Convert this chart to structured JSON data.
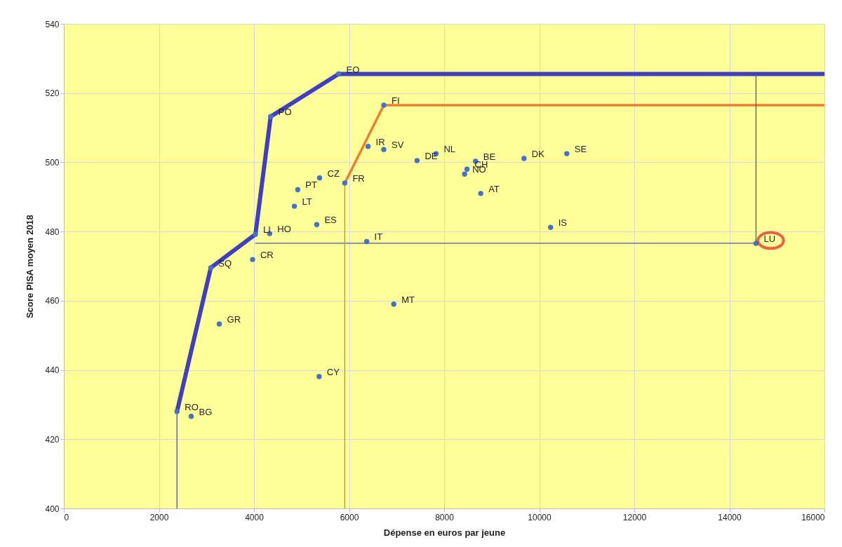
{
  "chart_data": {
    "type": "scatter",
    "xlabel": "Dépense en euros par jeune",
    "ylabel": "Score PISA moyen 2018",
    "xlim": [
      0,
      16000
    ],
    "ylim": [
      400,
      540
    ],
    "xticks": [
      0,
      2000,
      4000,
      6000,
      8000,
      10000,
      12000,
      14000,
      16000
    ],
    "yticks": [
      400,
      420,
      440,
      460,
      480,
      500,
      520,
      540
    ],
    "grid": true,
    "series": [
      {
        "type": "line",
        "color": "#3f3fbf",
        "x": [
          2380,
          3090,
          4030,
          4350,
          5780,
          16000
        ],
        "values": [
          428,
          469.5,
          479.2,
          513.2,
          525.5,
          525.5
        ]
      },
      {
        "type": "line",
        "color": "#ed7d31",
        "x": [
          5910,
          6730,
          16000
        ],
        "values": [
          494,
          516.5,
          516.5
        ]
      },
      {
        "type": "line",
        "color": "#4a5a9e",
        "x": [
          2380,
          2380
        ],
        "values": [
          428,
          400
        ]
      },
      {
        "type": "line",
        "color": "#4a5a9e",
        "x": [
          4030,
          14560,
          14560
        ],
        "values": [
          476.6,
          476.6,
          525.5
        ]
      },
      {
        "type": "line",
        "color": "#c98a3c",
        "x": [
          5910,
          5910
        ],
        "values": [
          494,
          400
        ]
      },
      {
        "color": "#4472c4",
        "x": [
          2380,
          2680,
          3270,
          3090,
          3970,
          4030,
          4330,
          4350,
          5780,
          6730,
          6400,
          6730,
          7430,
          7830,
          5380,
          5910,
          4920,
          4850,
          5320,
          6370,
          8660,
          8480,
          8430,
          8770,
          9680,
          10580,
          10240,
          6940,
          5370,
          14560
        ],
        "values": [
          428,
          426.6,
          453.3,
          469.5,
          471.9,
          479.2,
          479.4,
          513.2,
          525.5,
          516.5,
          504.6,
          503.7,
          500.5,
          502.5,
          495.5,
          494,
          492.1,
          487.3,
          482,
          477.1,
          500.3,
          498,
          496.6,
          491,
          501.1,
          502.5,
          481.2,
          459,
          438.1,
          476.6
        ]
      }
    ],
    "annotations": [
      {
        "text": "RO",
        "x": 2380,
        "y": 428
      },
      {
        "text": "BG",
        "x": 2680,
        "y": 426.6
      },
      {
        "text": "GR",
        "x": 3270,
        "y": 453.3
      },
      {
        "text": "SQ",
        "x": 3090,
        "y": 469.5
      },
      {
        "text": "CR",
        "x": 3970,
        "y": 471.9
      },
      {
        "text": "LI",
        "x": 4030,
        "y": 479.2
      },
      {
        "text": "HO",
        "x": 4330,
        "y": 479.4
      },
      {
        "text": "PO",
        "x": 4350,
        "y": 513.2
      },
      {
        "text": "EO",
        "x": 5780,
        "y": 525.5
      },
      {
        "text": "FI",
        "x": 6730,
        "y": 516.5
      },
      {
        "text": "IR",
        "x": 6400,
        "y": 504.6
      },
      {
        "text": "SV",
        "x": 6730,
        "y": 503.7
      },
      {
        "text": "DE",
        "x": 7430,
        "y": 500.5
      },
      {
        "text": "NL",
        "x": 7830,
        "y": 502.5
      },
      {
        "text": "CZ",
        "x": 5380,
        "y": 495.5
      },
      {
        "text": "FR",
        "x": 5910,
        "y": 494
      },
      {
        "text": "PT",
        "x": 4920,
        "y": 492.1
      },
      {
        "text": "LT",
        "x": 4850,
        "y": 487.3
      },
      {
        "text": "ES",
        "x": 5320,
        "y": 482
      },
      {
        "text": "IT",
        "x": 6370,
        "y": 477.1
      },
      {
        "text": "BE",
        "x": 8660,
        "y": 500.3
      },
      {
        "text": "CH",
        "x": 8480,
        "y": 498
      },
      {
        "text": "NO",
        "x": 8430,
        "y": 496.6
      },
      {
        "text": "AT",
        "x": 8770,
        "y": 491
      },
      {
        "text": "DK",
        "x": 9680,
        "y": 501.1
      },
      {
        "text": "SE",
        "x": 10580,
        "y": 502.5
      },
      {
        "text": "IS",
        "x": 10240,
        "y": 481.2
      },
      {
        "text": "MT",
        "x": 6940,
        "y": 459
      },
      {
        "text": "CY",
        "x": 5370,
        "y": 438.1
      },
      {
        "text": "LU",
        "x": 14560,
        "y": 476.6
      }
    ]
  }
}
